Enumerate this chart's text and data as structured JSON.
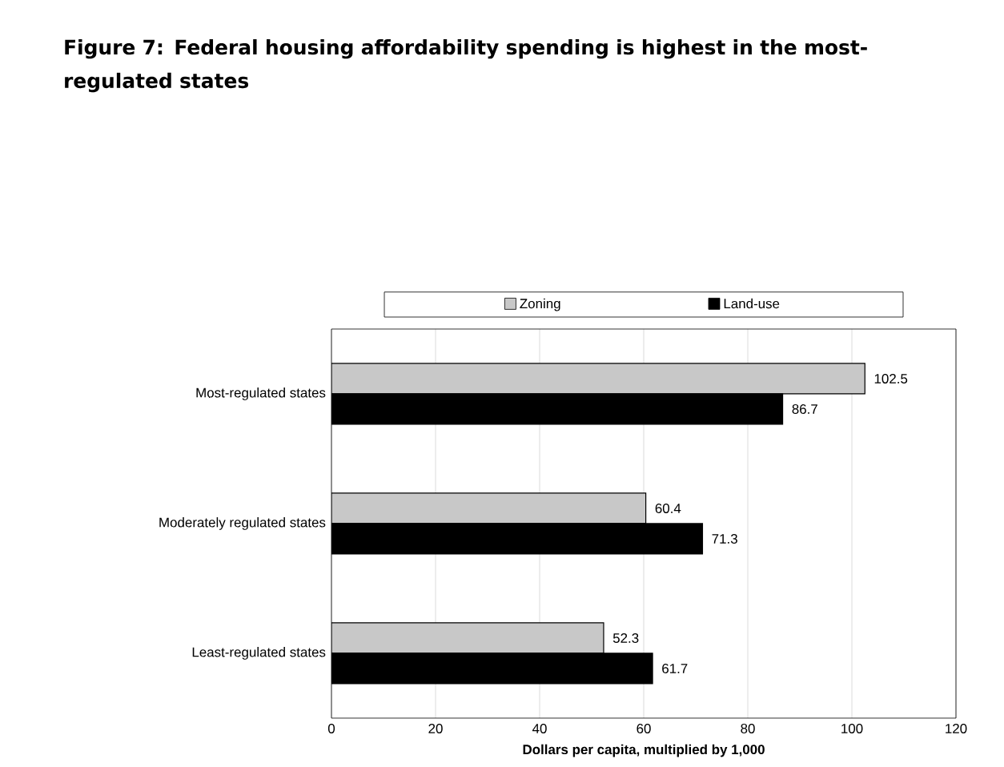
{
  "chart_data": {
    "type": "bar",
    "orientation": "horizontal",
    "title": "Figure 7: Federal housing affordability spending is highest in the most-regulated states",
    "xlabel": "Dollars per capita, multiplied by 1,000",
    "categories": [
      "Most-regulated states",
      "Moderately regulated states",
      "Least-regulated states"
    ],
    "series": [
      {
        "name": "Zoning",
        "color": "#c8c8c8",
        "values": [
          102.5,
          60.4,
          52.3
        ]
      },
      {
        "name": "Land-use",
        "color": "#000000",
        "values": [
          86.7,
          71.3,
          61.7
        ]
      }
    ],
    "xlim": [
      0,
      120
    ],
    "xticks": [
      0,
      20,
      40,
      60,
      80,
      100,
      120
    ],
    "grid": "x",
    "legend": "top",
    "data_labels": true
  }
}
